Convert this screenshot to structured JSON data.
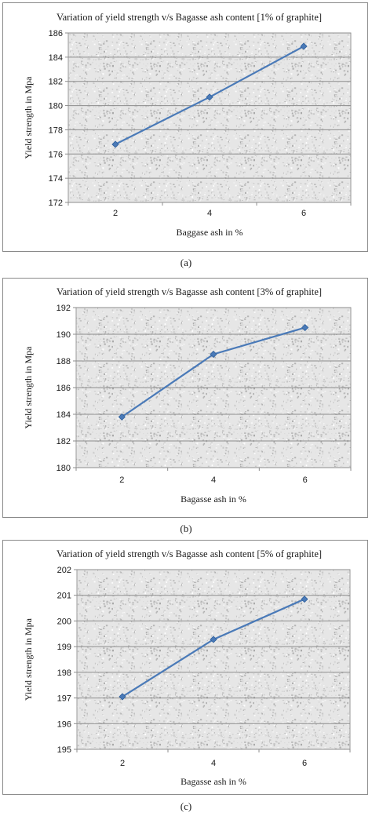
{
  "charts": [
    {
      "caption": "(a)",
      "chart_data": {
        "type": "line",
        "title": "Variation of yield strength v/s Bagasse ash content  [1% of graphite]",
        "xlabel": "Baggase ash in %",
        "ylabel": "Yield strength in Mpa",
        "categories": [
          "2",
          "4",
          "6"
        ],
        "series": [
          {
            "values": [
              176.8,
              180.7,
              184.9
            ]
          }
        ],
        "ylim": [
          172,
          186
        ],
        "yticks": [
          172,
          174,
          176,
          178,
          180,
          182,
          184,
          186
        ],
        "grid": true,
        "line_color": "#4a7ab8"
      }
    },
    {
      "caption": "(b)",
      "chart_data": {
        "type": "line",
        "title": "Variation of yield strength v/s Bagasse ash content  [3% of graphite]",
        "xlabel": "Bagasse ash in %",
        "ylabel": "Yield strength in Mpa",
        "categories": [
          "2",
          "4",
          "6"
        ],
        "series": [
          {
            "values": [
              183.8,
              188.5,
              190.5
            ]
          }
        ],
        "ylim": [
          180,
          192
        ],
        "yticks": [
          180,
          182,
          184,
          186,
          188,
          190,
          192
        ],
        "grid": true,
        "line_color": "#4a7ab8"
      }
    },
    {
      "caption": "(c)",
      "chart_data": {
        "type": "line",
        "title": "Variation of yield strength v/s Bagasse ash content  [5% of graphite]",
        "xlabel": "Bagasse ash in %",
        "ylabel": "Yield strength in Mpa",
        "categories": [
          "2",
          "4",
          "6"
        ],
        "series": [
          {
            "values": [
              197.05,
              199.28,
              200.85
            ]
          }
        ],
        "ylim": [
          195,
          202
        ],
        "yticks": [
          195,
          196,
          197,
          198,
          199,
          200,
          201,
          202
        ],
        "grid": true,
        "line_color": "#4a7ab8"
      }
    }
  ]
}
